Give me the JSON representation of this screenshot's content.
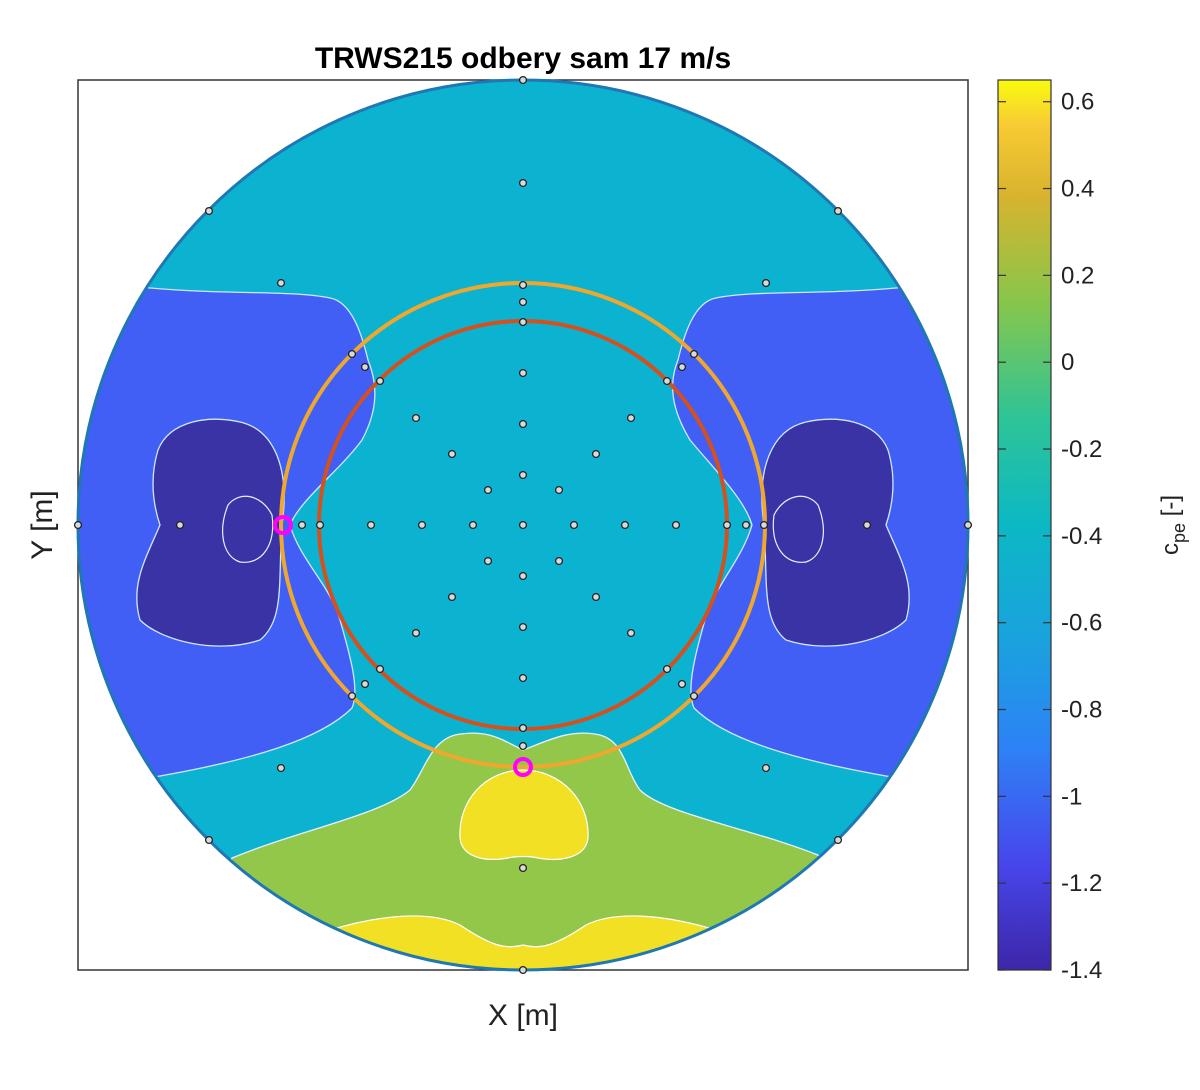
{
  "chart_data": {
    "type": "heatmap",
    "title": "TRWS215 odbery sam 17 m/s",
    "xlabel": "X [m]",
    "ylabel": "Y [m]",
    "colorbar": {
      "label": "c_pe [-]",
      "label_main": "c",
      "label_sub": "pe",
      "label_suffix": " [-]",
      "range": [
        -1.4,
        0.65
      ],
      "ticks": [
        0.6,
        0.4,
        0.2,
        0,
        -0.2,
        -0.4,
        -0.6,
        -0.8,
        -1,
        -1.2,
        -1.4
      ],
      "tick_labels": [
        "0.6",
        "0.4",
        "0.2",
        "0",
        "-0.2",
        "-0.4",
        "-0.6",
        "-0.8",
        "-1",
        "-1.2",
        "-1.4"
      ],
      "colormap": "parula"
    },
    "x_ticks": "none",
    "y_ticks": "none",
    "grid": false,
    "domain": "circular",
    "zones": [
      {
        "label": "upper band",
        "value": -0.55,
        "color": "#0bb3d0"
      },
      {
        "label": "central region",
        "value": -0.55,
        "color": "#0bb3d0"
      },
      {
        "label": "side regions",
        "value": -1.0,
        "color": "#415ff5"
      },
      {
        "label": "side pockets",
        "value": -1.25,
        "color": "#3a33a6"
      },
      {
        "label": "lower bulge",
        "value": 0.0,
        "color": "#93c74a"
      },
      {
        "label": "peak patches",
        "value": 0.55,
        "color": "#f2e024"
      }
    ],
    "rings": [
      {
        "label": "outer ring",
        "color": "#f0a72d"
      },
      {
        "label": "inner ring",
        "color": "#d4501e"
      }
    ],
    "highlighted_taps": [
      {
        "label": "left tap",
        "color": "#ff00ff"
      },
      {
        "label": "bottom tap",
        "color": "#ff00ff"
      }
    ]
  }
}
